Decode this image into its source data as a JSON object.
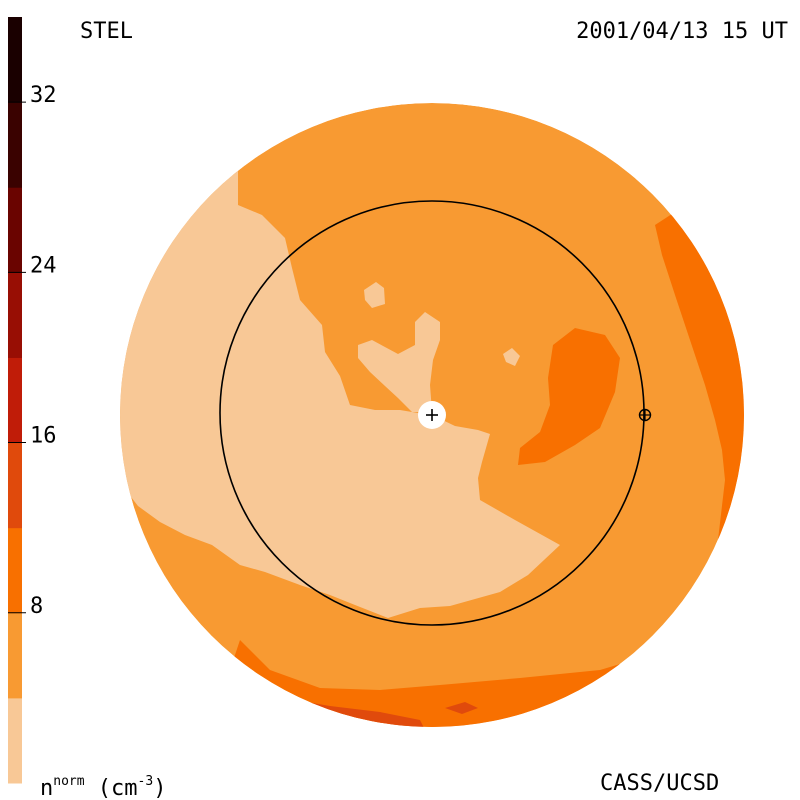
{
  "header": {
    "source": "STEL",
    "datetime": "2001/04/13 15 UT"
  },
  "footer": {
    "credit": "CASS/UCSD",
    "unit_base": "n",
    "unit_sup": "norm",
    "unit_rest": " (cm",
    "unit_exp": "-3",
    "unit_close": ")"
  },
  "chart_data": {
    "type": "heatmap",
    "colorbar": {
      "range": [
        0,
        36
      ],
      "levels": [
        {
          "from": 0,
          "to": 4,
          "color": "#f8c896"
        },
        {
          "from": 4,
          "to": 8,
          "color": "#f89a32"
        },
        {
          "from": 8,
          "to": 12,
          "color": "#f87000"
        },
        {
          "from": 12,
          "to": 16,
          "color": "#e04a0c"
        },
        {
          "from": 16,
          "to": 20,
          "color": "#c01c08"
        },
        {
          "from": 20,
          "to": 24,
          "color": "#980e04"
        },
        {
          "from": 24,
          "to": 28,
          "color": "#6a0400"
        },
        {
          "from": 28,
          "to": 32,
          "color": "#3a0200"
        },
        {
          "from": 32,
          "to": 36,
          "color": "#1a0000"
        }
      ],
      "tick_labels": [
        {
          "value": 8,
          "label": "8"
        },
        {
          "value": 16,
          "label": "16"
        },
        {
          "value": 24,
          "label": "24"
        },
        {
          "value": 32,
          "label": "32"
        }
      ]
    }
  }
}
